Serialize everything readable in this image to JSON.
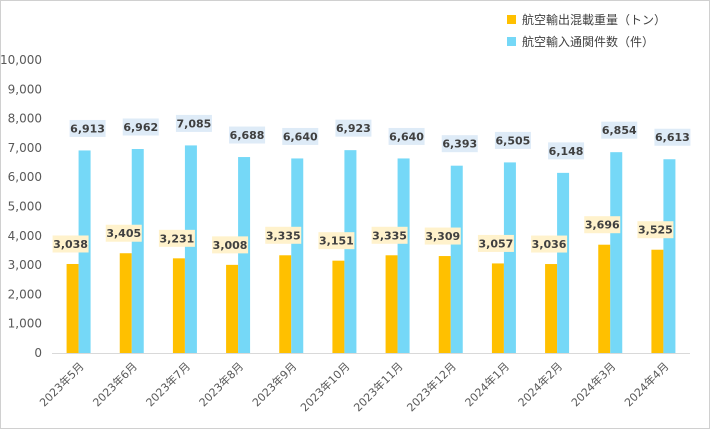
{
  "chart_data": {
    "type": "bar",
    "categories": [
      "2023年5月",
      "2023年6月",
      "2023年7月",
      "2023年8月",
      "2023年9月",
      "2023年10月",
      "2023年11月",
      "2023年12月",
      "2024年1月",
      "2024年2月",
      "2024年3月",
      "2024年4月"
    ],
    "series": [
      {
        "name": "航空輸出混載重量（トン）",
        "color": "#FFC000",
        "values": [
          3038,
          3405,
          3231,
          3008,
          3335,
          3151,
          3335,
          3309,
          3057,
          3036,
          3696,
          3525
        ]
      },
      {
        "name": "航空輸入通関件数（件）",
        "color": "#75D8F7",
        "values": [
          6913,
          6962,
          7085,
          6688,
          6640,
          6923,
          6640,
          6393,
          6505,
          6148,
          6854,
          6613
        ]
      }
    ],
    "ylim": [
      0,
      10000
    ],
    "yticks": [
      0,
      1000,
      2000,
      3000,
      4000,
      5000,
      6000,
      7000,
      8000,
      9000,
      10000
    ],
    "grid": false,
    "legend_position": "top-right",
    "label_backgrounds": [
      "#FFF2CC",
      "#DEEBF7"
    ]
  }
}
